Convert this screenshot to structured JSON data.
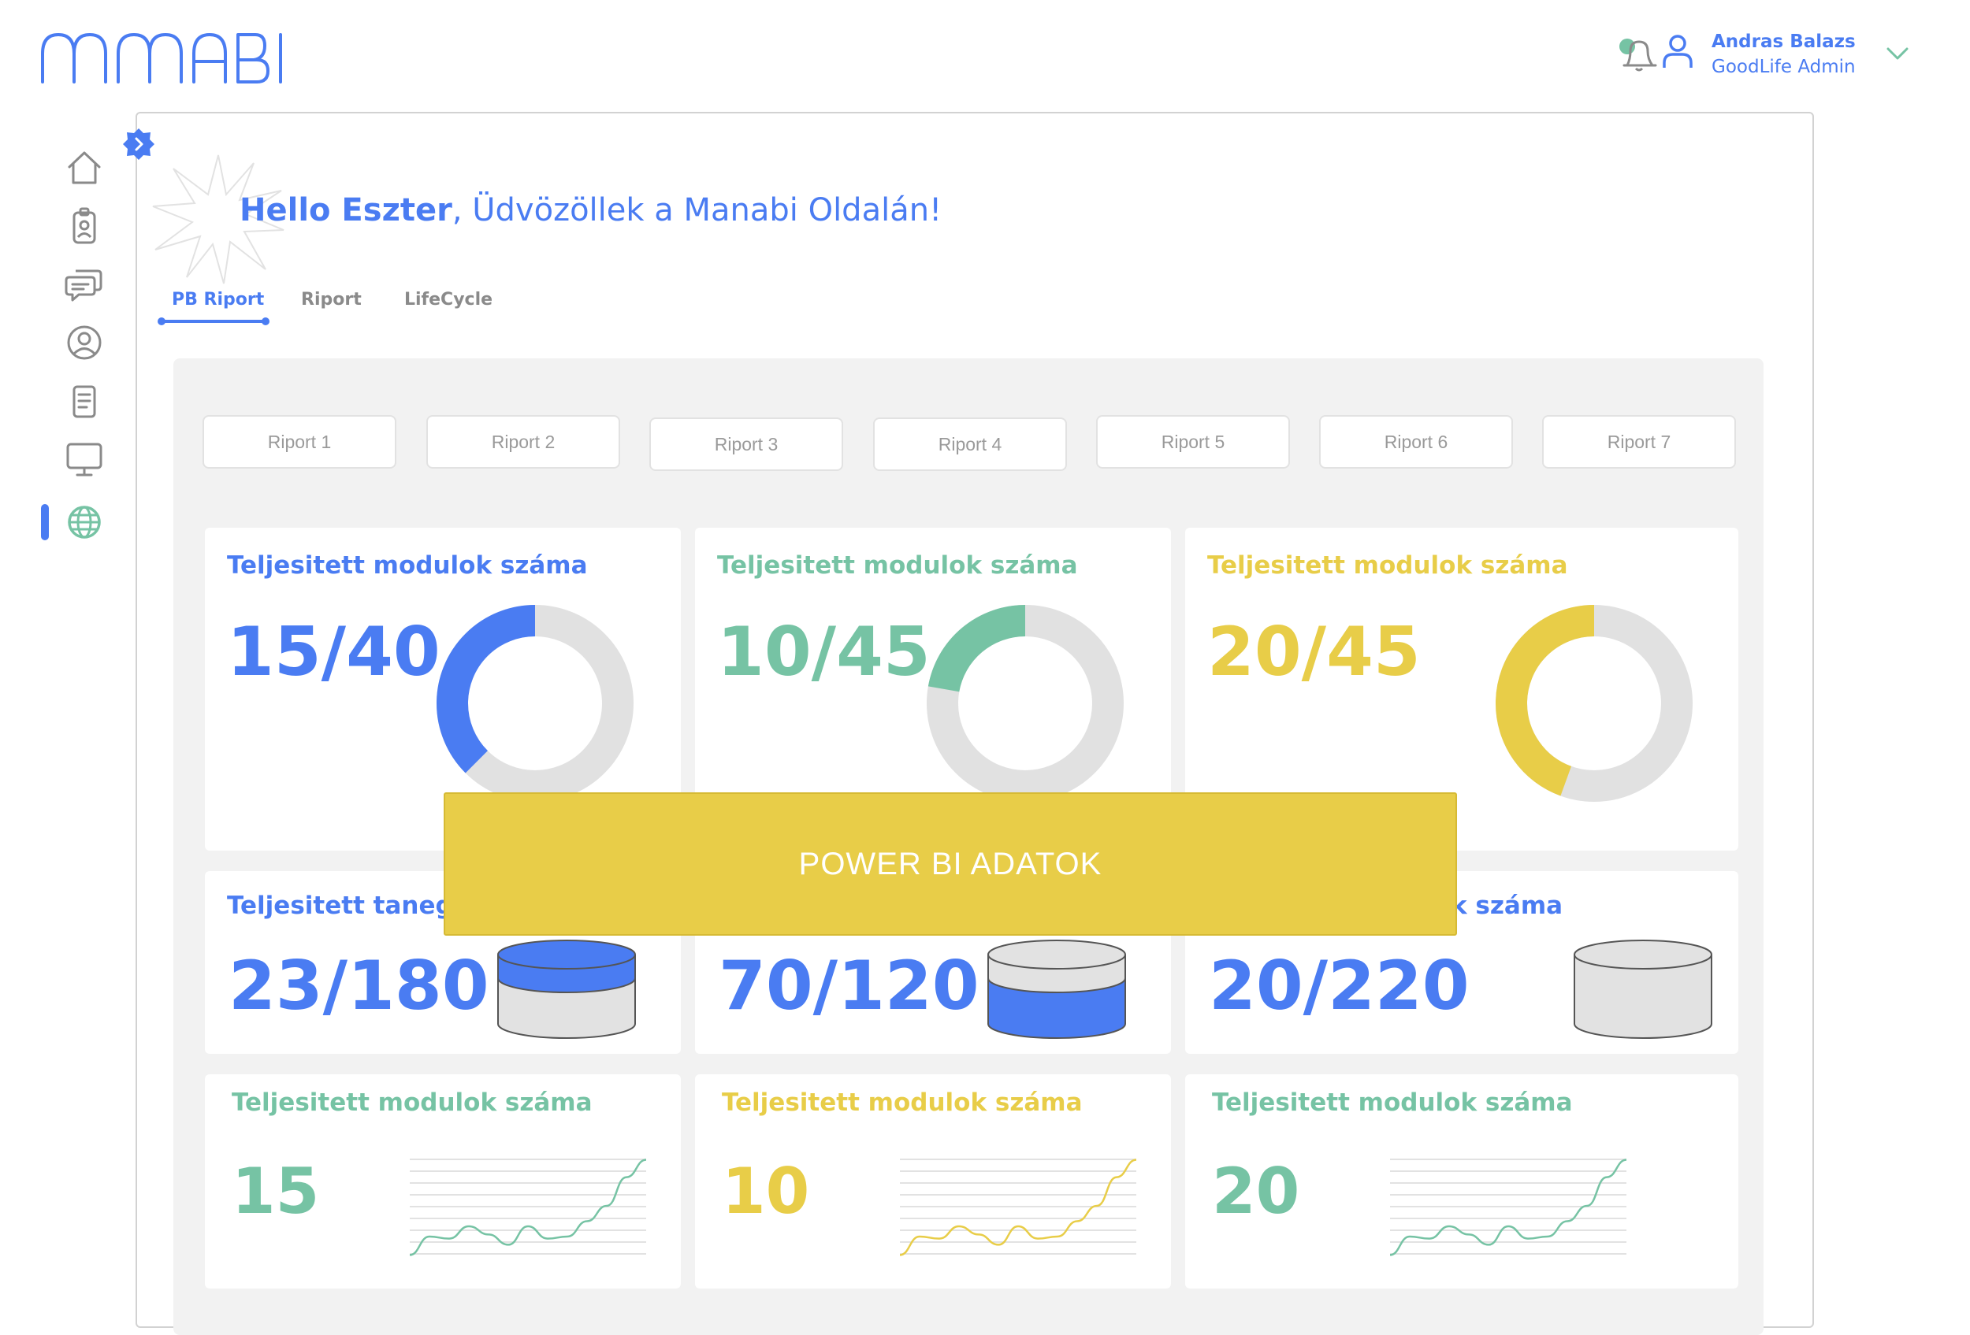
{
  "app": {
    "logo_text": "MANABI"
  },
  "header": {
    "user_name": "Andras Balazs",
    "user_role": "GoodLife Admin",
    "icons": [
      "bell-icon",
      "user-icon",
      "chevron-down-icon"
    ]
  },
  "sidebar": {
    "items": [
      {
        "icon": "home-icon"
      },
      {
        "icon": "badge-icon"
      },
      {
        "icon": "chat-icon"
      },
      {
        "icon": "profile-icon"
      },
      {
        "icon": "document-icon"
      },
      {
        "icon": "monitor-icon"
      },
      {
        "icon": "globe-icon",
        "active": true
      }
    ]
  },
  "greeting": {
    "name": "Hello Eszter",
    "message": ", Üdvözöllek a Manabi Oldalán!"
  },
  "tabs": [
    {
      "label": "PB Riport",
      "active": true
    },
    {
      "label": "Riport"
    },
    {
      "label": "LifeCycle"
    }
  ],
  "report_buttons": [
    "Riport 1",
    "Riport 2",
    "Riport 3",
    "Riport 4",
    "Riport 5",
    "Riport 6",
    "Riport 7"
  ],
  "donut_cards": [
    {
      "title": "Teljesitett modulok száma",
      "value": "15/40",
      "done": 15,
      "total": 40,
      "color": "#4a7cf2",
      "track": "#e1e1e1"
    },
    {
      "title": "Teljesitett modulok száma",
      "value": "10/45",
      "done": 10,
      "total": 45,
      "color": "#76c3a4",
      "track": "#e1e1e1"
    },
    {
      "title": "Teljesitett modulok száma",
      "value": "20/45",
      "done": 20,
      "total": 45,
      "color": "#e8cd48",
      "track": "#e1e1e1"
    }
  ],
  "cylinder_cards": [
    {
      "title": "Teljesitett tanegys",
      "value": "23/180"
    },
    {
      "title": "",
      "value": "70/120"
    },
    {
      "title": "ek száma",
      "value": "20/220"
    }
  ],
  "spark_cards": [
    {
      "title": "Teljesitett modulok száma",
      "value": "15",
      "color": "#76c3a4"
    },
    {
      "title": "Teljesitett modulok száma",
      "value": "10",
      "color": "#e8cd48"
    },
    {
      "title": "Teljesitett modulok száma",
      "value": "20",
      "color": "#76c3a4"
    }
  ],
  "overlay": {
    "label": "POWER BI ADATOK"
  },
  "colors": {
    "blue": "#4a7cf2",
    "green": "#76c3a4",
    "yellow": "#e8cd48",
    "panel": "#f2f2f2"
  }
}
